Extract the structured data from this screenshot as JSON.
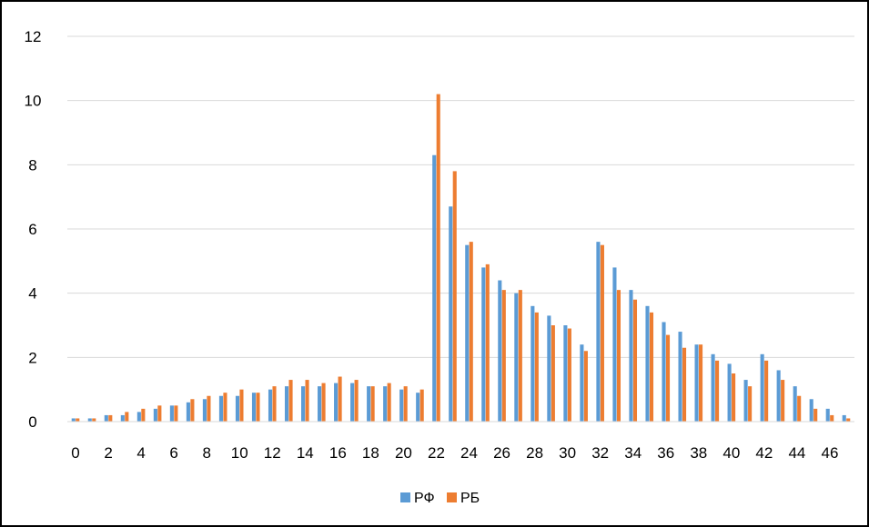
{
  "chart_data": {
    "type": "bar",
    "x": [
      0,
      1,
      2,
      3,
      4,
      5,
      6,
      7,
      8,
      9,
      10,
      11,
      12,
      13,
      14,
      15,
      16,
      17,
      18,
      19,
      20,
      21,
      22,
      23,
      24,
      25,
      26,
      27,
      28,
      29,
      30,
      31,
      32,
      33,
      34,
      35,
      36,
      37,
      38,
      39,
      40,
      41,
      42,
      43,
      44,
      45,
      46,
      47
    ],
    "x_tick_labels": [
      "0",
      "2",
      "4",
      "6",
      "8",
      "10",
      "12",
      "14",
      "16",
      "18",
      "20",
      "22",
      "24",
      "26",
      "28",
      "30",
      "32",
      "34",
      "36",
      "38",
      "40",
      "42",
      "44",
      "46"
    ],
    "series": [
      {
        "name": "РФ",
        "color": "#5b9bd5",
        "values": [
          0.1,
          0.1,
          0.2,
          0.2,
          0.3,
          0.4,
          0.5,
          0.6,
          0.7,
          0.8,
          0.8,
          0.9,
          1.0,
          1.1,
          1.1,
          1.1,
          1.2,
          1.2,
          1.1,
          1.1,
          1.0,
          0.9,
          8.3,
          6.7,
          5.5,
          4.8,
          4.4,
          4.0,
          3.6,
          3.3,
          3.0,
          2.4,
          5.6,
          4.8,
          4.1,
          3.6,
          3.1,
          2.8,
          2.4,
          2.1,
          1.8,
          1.3,
          2.1,
          1.6,
          1.1,
          0.7,
          0.4,
          0.2
        ]
      },
      {
        "name": "РБ",
        "color": "#ed7d31",
        "values": [
          0.1,
          0.1,
          0.2,
          0.3,
          0.4,
          0.5,
          0.5,
          0.7,
          0.8,
          0.9,
          1.0,
          0.9,
          1.1,
          1.3,
          1.3,
          1.2,
          1.4,
          1.3,
          1.1,
          1.2,
          1.1,
          1.0,
          10.2,
          7.8,
          5.6,
          4.9,
          4.1,
          4.1,
          3.4,
          3.0,
          2.9,
          2.2,
          5.5,
          4.1,
          3.8,
          3.4,
          2.7,
          2.3,
          2.4,
          1.9,
          1.5,
          1.1,
          1.9,
          1.3,
          0.8,
          0.4,
          0.2,
          0.1
        ]
      }
    ],
    "ylim": [
      0,
      12
    ],
    "y_ticks": [
      "0",
      "2",
      "4",
      "6",
      "8",
      "10",
      "12"
    ],
    "grid": true,
    "legend_position": "bottom"
  }
}
